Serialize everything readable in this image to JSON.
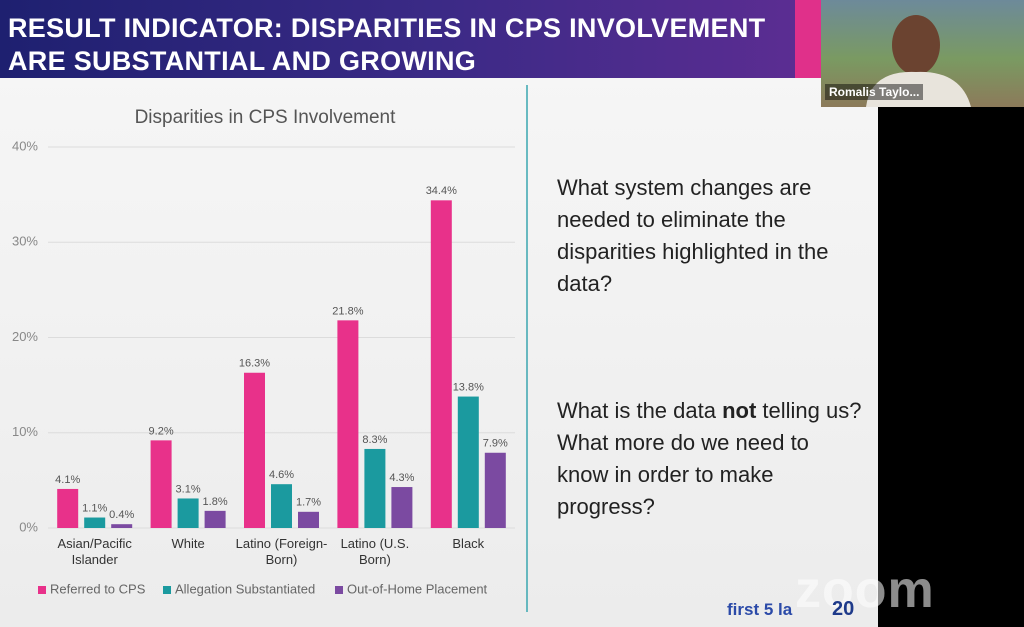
{
  "header": {
    "title_lines": [
      "RESULT INDICATOR: DISPARITIES IN CPS INVOLVEMENT",
      "ARE SUBSTANTIAL AND GROWING"
    ]
  },
  "video": {
    "participant_name": "Romalis Taylo..."
  },
  "chart_data": {
    "type": "bar",
    "title": "Disparities in CPS Involvement",
    "categories": [
      "Asian/Pacific Islander",
      "White",
      "Latino (Foreign-Born)",
      "Latino (U.S. Born)",
      "Black"
    ],
    "series": [
      {
        "name": "Referred to CPS",
        "color": "#e8318a",
        "values": [
          4.1,
          9.2,
          16.3,
          21.8,
          34.4
        ],
        "value_labels": [
          "4.1%",
          "9.2%",
          "16.3%",
          "21.8%",
          "34.4%"
        ]
      },
      {
        "name": "Allegation Substantiated",
        "color": "#1b9a9f",
        "values": [
          1.1,
          3.1,
          4.6,
          8.3,
          13.8
        ],
        "value_labels": [
          "1.1%",
          "3.1%",
          "4.6%",
          "8.3%",
          "13.8%"
        ]
      },
      {
        "name": "Out-of-Home Placement",
        "color": "#7b4aa1",
        "values": [
          0.4,
          1.8,
          1.7,
          4.3,
          7.9
        ],
        "value_labels": [
          "0.4%",
          "1.8%",
          "1.7%",
          "4.3%",
          "7.9%"
        ]
      }
    ],
    "ylim": [
      0,
      40
    ],
    "yticks": [
      {
        "value": 0,
        "label": "0%"
      },
      {
        "value": 10,
        "label": "10%"
      },
      {
        "value": 20,
        "label": "20%"
      },
      {
        "value": 30,
        "label": "30%"
      },
      {
        "value": 40,
        "label": "40%"
      }
    ],
    "grid": true,
    "legend": "bottom"
  },
  "questions": {
    "first": "What system changes are needed to eliminate the disparities highlighted in the data?",
    "second": [
      "What is the data ",
      "not",
      " telling us? What more do we need to know in order to make progress?"
    ]
  },
  "branding": {
    "logo": "first 5 la",
    "anniversary": "20",
    "watermark": "zoom"
  }
}
